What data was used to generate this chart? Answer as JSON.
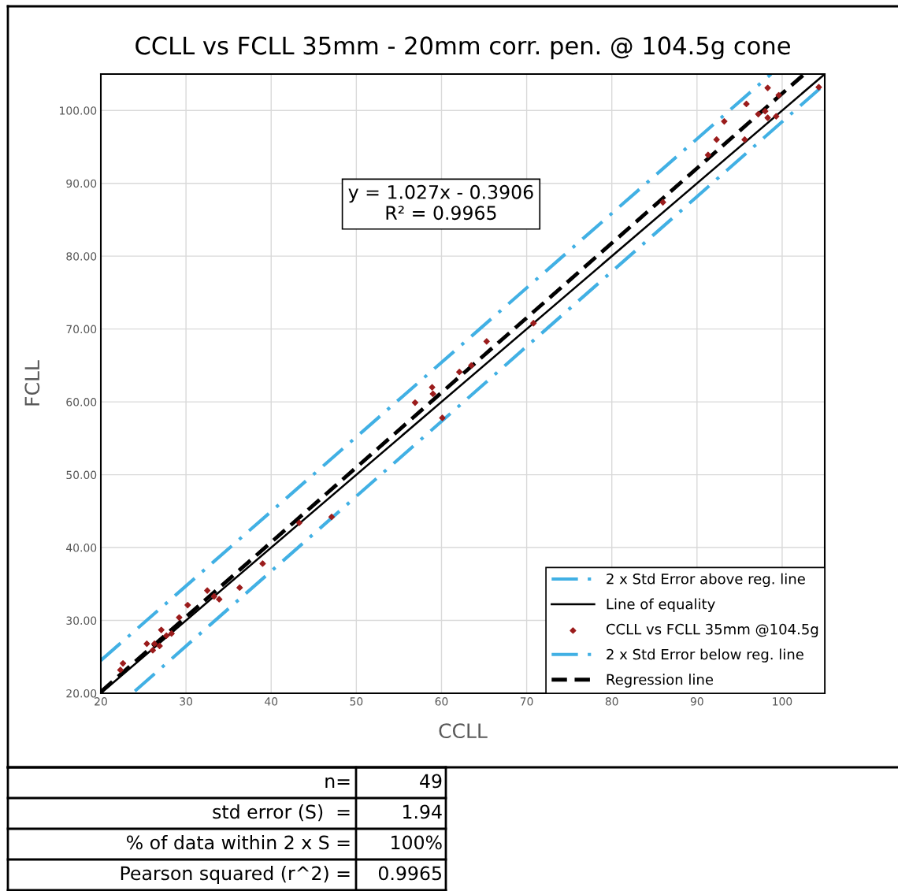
{
  "chart_data": {
    "type": "scatter",
    "title": "CCLL vs FCLL 35mm - 20mm corr. pen. @ 104.5g cone",
    "xlabel": "CCLL",
    "ylabel": "FCLL",
    "xlim": [
      20,
      105
    ],
    "ylim": [
      20,
      105
    ],
    "xticks": [
      20,
      30,
      40,
      50,
      60,
      70,
      80,
      90,
      100
    ],
    "yticks": [
      {
        "value": 20,
        "label": "20.00"
      },
      {
        "value": 30,
        "label": "30.00"
      },
      {
        "value": 40,
        "label": "40.00"
      },
      {
        "value": 50,
        "label": "50.00"
      },
      {
        "value": 60,
        "label": "60.00"
      },
      {
        "value": 70,
        "label": "70.00"
      },
      {
        "value": 80,
        "label": "80.00"
      },
      {
        "value": 90,
        "label": "90.00"
      },
      {
        "value": 100,
        "label": "100.00"
      }
    ],
    "grid": true,
    "legend": "bottom right",
    "series": [
      {
        "name": "2 x Std Error above reg. line",
        "type": "line",
        "line_style": "dashdot",
        "marker": "none",
        "color": "#41b0e4",
        "x": [
          20,
          98.7
        ],
        "values": [
          24.5,
          105
        ]
      },
      {
        "name": "Line of equality",
        "type": "line",
        "line_style": "solid",
        "marker": "none",
        "color": "#000000",
        "x": [
          20,
          105
        ],
        "values": [
          20,
          105
        ]
      },
      {
        "name": "CCLL vs FCLL 35mm @104.5g",
        "marker": "diamond",
        "color": "#9b1c1c",
        "x": [
          22.6,
          22.3,
          25.4,
          26.1,
          26.9,
          27.1,
          26.3,
          28.3,
          27.7,
          29.2,
          30.2,
          32.5,
          33.3,
          33.9,
          36.3,
          39.0,
          43.3,
          47.1,
          56.9,
          58.9,
          59.0,
          60.1,
          62.1,
          63.5,
          65.3,
          70.8,
          86.0,
          91.3,
          92.3,
          93.2,
          95.6,
          95.8,
          97.2,
          98.0,
          98.3,
          99.3,
          98.3,
          99.6,
          104.3
        ],
        "values": [
          24.1,
          23.2,
          26.8,
          25.9,
          26.5,
          28.7,
          26.8,
          28.2,
          27.9,
          30.4,
          32.1,
          34.1,
          33.3,
          32.9,
          34.5,
          37.8,
          43.4,
          44.2,
          59.9,
          62.0,
          61.1,
          57.8,
          64.1,
          65.0,
          68.3,
          70.8,
          87.4,
          93.9,
          96.0,
          98.5,
          96.0,
          100.9,
          99.5,
          99.9,
          99.0,
          99.2,
          103.1,
          102.1,
          103.2
        ]
      },
      {
        "name": "2 x Std Error below reg. line",
        "type": "line",
        "line_style": "dashdot",
        "marker": "none",
        "color": "#41b0e4",
        "x": [
          24,
          105
        ],
        "values": [
          20.3,
          103.6
        ]
      },
      {
        "name": "Regression line",
        "type": "line",
        "line_style": "dashed",
        "marker": "none",
        "color": "#000000",
        "x": [
          20,
          102.6
        ],
        "values": [
          20.2,
          105.0
        ]
      }
    ],
    "annotations": [
      "y = 1.027x - 0.3906\nR² = 0.9965",
      "n=",
      "49",
      "std error (S)  =",
      "1.94",
      "% of data within 2 x S =",
      "100%",
      "Pearson squared (r^2) =",
      "0.9965"
    ]
  }
}
